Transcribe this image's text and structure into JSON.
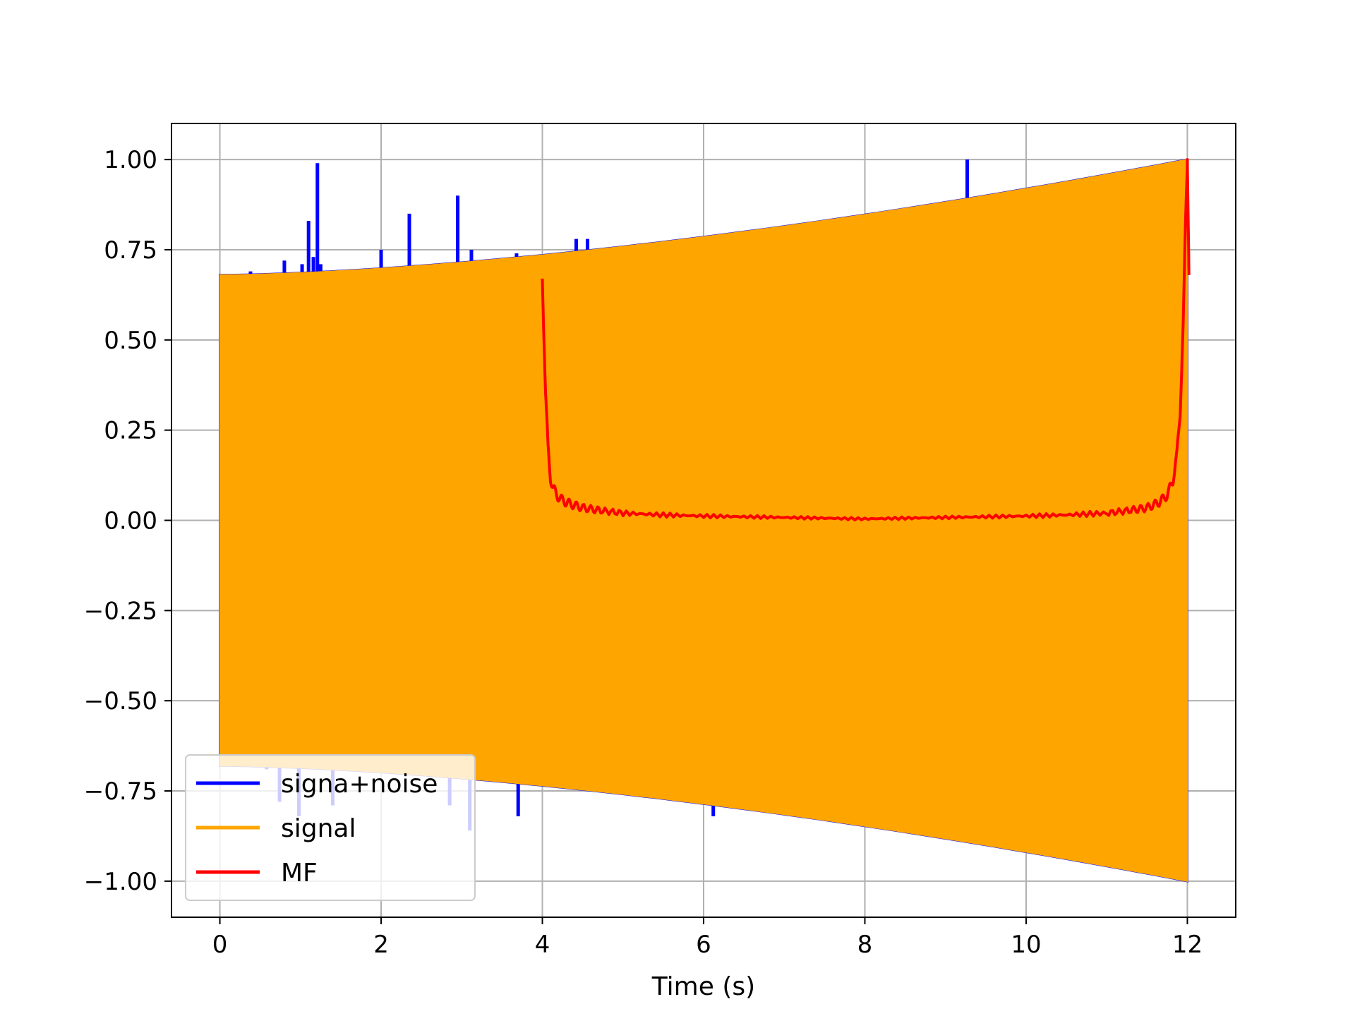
{
  "chart_data": {
    "type": "line",
    "title": "",
    "xlabel": "Time (s)",
    "ylabel": "",
    "xlim": [
      -0.6,
      12.6
    ],
    "ylim": [
      -1.1,
      1.1
    ],
    "xticks": [
      0,
      2,
      4,
      6,
      8,
      10,
      12
    ],
    "xtick_labels": [
      "0",
      "2",
      "4",
      "6",
      "8",
      "10",
      "12"
    ],
    "yticks": [
      1.0,
      0.75,
      0.5,
      0.25,
      0.0,
      -0.25,
      -0.5,
      -0.75,
      -1.0
    ],
    "ytick_labels": [
      "1.00",
      "0.75",
      "0.50",
      "0.25",
      "0.00",
      "−0.25",
      "−0.50",
      "−0.75",
      "−1.00"
    ],
    "grid": true,
    "legend_position": "lower-left",
    "series": [
      {
        "name": "signa+noise",
        "color": "#0000ff",
        "envelope": {
          "x": [
            0,
            12
          ],
          "upper": [
            0.68,
            1.0
          ],
          "lower": [
            -0.68,
            -1.0
          ]
        },
        "spikes": [
          {
            "x": 0.38,
            "y": 0.69
          },
          {
            "x": 0.8,
            "y": 0.72
          },
          {
            "x": 1.02,
            "y": 0.71
          },
          {
            "x": 1.1,
            "y": 0.83
          },
          {
            "x": 1.16,
            "y": 0.73
          },
          {
            "x": 1.21,
            "y": 0.99
          },
          {
            "x": 1.25,
            "y": 0.71
          },
          {
            "x": 2.0,
            "y": 0.75
          },
          {
            "x": 2.35,
            "y": 0.85
          },
          {
            "x": 2.95,
            "y": 0.9
          },
          {
            "x": 3.12,
            "y": 0.75
          },
          {
            "x": 3.68,
            "y": 0.74
          },
          {
            "x": 4.42,
            "y": 0.78
          },
          {
            "x": 4.56,
            "y": 0.78
          },
          {
            "x": 9.27,
            "y": 1.0
          },
          {
            "x": 0.58,
            "y": -0.69
          },
          {
            "x": 0.74,
            "y": -0.78
          },
          {
            "x": 0.98,
            "y": -0.82
          },
          {
            "x": 1.4,
            "y": -0.79
          },
          {
            "x": 2.85,
            "y": -0.79
          },
          {
            "x": 3.1,
            "y": -0.86
          },
          {
            "x": 3.7,
            "y": -0.82
          },
          {
            "x": 5.58,
            "y": -0.76
          },
          {
            "x": 6.12,
            "y": -0.82
          },
          {
            "x": 6.28,
            "y": -0.78
          },
          {
            "x": 8.95,
            "y": -0.85
          }
        ]
      },
      {
        "name": "signal",
        "color": "#ffa500",
        "envelope": {
          "x": [
            0,
            12
          ],
          "upper": [
            0.68,
            1.0
          ],
          "lower": [
            -0.68,
            -1.0
          ]
        }
      },
      {
        "name": "MF",
        "color": "#ff0000",
        "x": [
          4.0,
          4.04,
          4.07,
          4.1,
          4.13,
          4.18,
          4.25,
          4.35,
          4.5,
          4.7,
          5.0,
          5.5,
          6.0,
          6.5,
          7.0,
          7.5,
          8.0,
          8.5,
          9.0,
          9.5,
          10.0,
          10.5,
          11.0,
          11.3,
          11.5,
          11.65,
          11.75,
          11.82,
          11.87,
          11.91,
          11.95,
          11.98,
          12.0,
          12.02
        ],
        "y": [
          0.67,
          0.35,
          0.2,
          0.12,
          0.09,
          0.07,
          0.055,
          0.045,
          0.035,
          0.028,
          0.02,
          0.015,
          0.012,
          0.01,
          0.008,
          0.006,
          0.004,
          0.006,
          0.008,
          0.01,
          0.012,
          0.015,
          0.02,
          0.028,
          0.035,
          0.05,
          0.07,
          0.11,
          0.18,
          0.3,
          0.55,
          0.85,
          1.0,
          0.68
        ]
      }
    ]
  }
}
